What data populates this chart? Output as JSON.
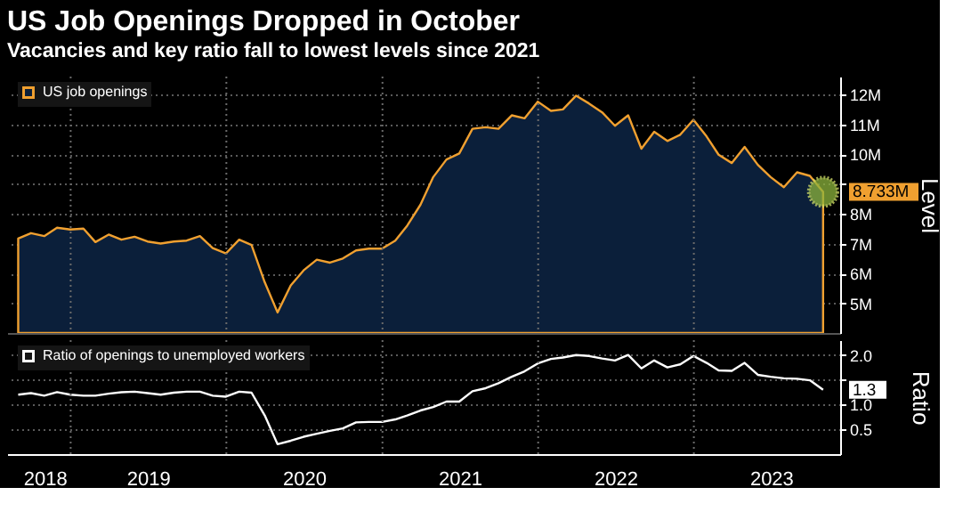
{
  "chart_data": [
    {
      "type": "area",
      "title": "US Job Openings Dropped in October",
      "subtitle": "Vacancies and key ratio fall to lowest levels since 2021",
      "ylabel": "Level",
      "x": [
        "2018-08-31",
        "2018-09-30",
        "2018-10-31",
        "2018-11-30",
        "2018-12-31",
        "2019-01-31",
        "2019-02-28",
        "2019-03-31",
        "2019-04-30",
        "2019-05-31",
        "2019-06-30",
        "2019-07-31",
        "2019-08-31",
        "2019-09-30",
        "2019-10-31",
        "2019-11-30",
        "2019-12-31",
        "2020-01-31",
        "2020-02-29",
        "2020-03-31",
        "2020-04-30",
        "2020-05-31",
        "2020-06-30",
        "2020-07-31",
        "2020-08-31",
        "2020-09-30",
        "2020-10-31",
        "2020-11-30",
        "2020-12-31",
        "2021-01-31",
        "2021-02-28",
        "2021-03-31",
        "2021-04-30",
        "2021-05-31",
        "2021-06-30",
        "2021-07-31",
        "2021-08-31",
        "2021-09-30",
        "2021-10-31",
        "2021-11-30",
        "2021-12-31",
        "2022-01-31",
        "2022-02-28",
        "2022-03-31",
        "2022-04-30",
        "2022-05-31",
        "2022-06-30",
        "2022-07-31",
        "2022-08-31",
        "2022-09-30",
        "2022-10-31",
        "2022-11-30",
        "2022-12-31",
        "2023-01-31",
        "2023-02-28",
        "2023-03-31",
        "2023-04-30",
        "2023-05-31",
        "2023-06-30",
        "2023-07-31",
        "2023-08-31",
        "2023-09-30",
        "2023-10-31"
      ],
      "series": [
        {
          "name": "US job openings",
          "color": "#f0a030",
          "values": [
            7.17,
            7.35,
            7.25,
            7.53,
            7.47,
            7.5,
            7.05,
            7.3,
            7.13,
            7.23,
            7.07,
            7.0,
            7.07,
            7.1,
            7.25,
            6.85,
            6.67,
            7.13,
            6.95,
            5.7,
            4.69,
            5.6,
            6.1,
            6.46,
            6.36,
            6.5,
            6.77,
            6.83,
            6.83,
            7.1,
            7.6,
            8.3,
            9.23,
            9.82,
            10.02,
            10.85,
            10.9,
            10.85,
            11.3,
            11.2,
            11.76,
            11.45,
            11.5,
            11.96,
            11.7,
            11.4,
            10.95,
            11.3,
            10.18,
            10.75,
            10.44,
            10.65,
            11.15,
            10.59,
            9.98,
            9.7,
            10.24,
            9.64,
            9.23,
            8.89,
            9.39,
            9.27,
            8.733
          ]
        }
      ],
      "xlim": [
        "2018-08-05",
        "2023-12-10"
      ],
      "xticks": [
        {
          "value": "2019-01-01",
          "label": null
        },
        {
          "value": "2020-01-01",
          "label": null
        },
        {
          "value": "2021-01-01",
          "label": null
        },
        {
          "value": "2022-01-01",
          "label": null
        },
        {
          "value": "2023-01-01",
          "label": null
        }
      ],
      "ylim": [
        4,
        12.6
      ],
      "yticks": [
        {
          "value": 5,
          "label": "5M"
        },
        {
          "value": 6,
          "label": "6M"
        },
        {
          "value": 7,
          "label": "7M"
        },
        {
          "value": 8,
          "label": "8M"
        },
        {
          "value": 9,
          "label": null
        },
        {
          "value": 10,
          "label": "10M"
        },
        {
          "value": 11,
          "label": "11M"
        },
        {
          "value": 12,
          "label": "12M"
        }
      ],
      "grid": true,
      "legend": "top left",
      "tick_labels": "y",
      "annotations": [
        {
          "text": "8.733M",
          "x": "2023-10-31",
          "y": 8.733
        }
      ]
    },
    {
      "type": "line",
      "ylabel": "Ratio",
      "x": [
        "2018-08-31",
        "2018-09-30",
        "2018-10-31",
        "2018-11-30",
        "2018-12-31",
        "2019-01-31",
        "2019-02-28",
        "2019-03-31",
        "2019-04-30",
        "2019-05-31",
        "2019-06-30",
        "2019-07-31",
        "2019-08-31",
        "2019-09-30",
        "2019-10-31",
        "2019-11-30",
        "2019-12-31",
        "2020-01-31",
        "2020-02-29",
        "2020-03-31",
        "2020-04-30",
        "2020-05-31",
        "2020-06-30",
        "2020-07-31",
        "2020-08-31",
        "2020-09-30",
        "2020-10-31",
        "2020-11-30",
        "2020-12-31",
        "2021-01-31",
        "2021-02-28",
        "2021-03-31",
        "2021-04-30",
        "2021-05-31",
        "2021-06-30",
        "2021-07-31",
        "2021-08-31",
        "2021-09-30",
        "2021-10-31",
        "2021-11-30",
        "2021-12-31",
        "2022-01-31",
        "2022-02-28",
        "2022-03-31",
        "2022-04-30",
        "2022-05-31",
        "2022-06-30",
        "2022-07-31",
        "2022-08-31",
        "2022-09-30",
        "2022-10-31",
        "2022-11-30",
        "2022-12-31",
        "2023-01-31",
        "2023-02-28",
        "2023-03-31",
        "2023-04-30",
        "2023-05-31",
        "2023-06-30",
        "2023-07-31",
        "2023-08-31",
        "2023-09-30",
        "2023-10-31"
      ],
      "series": [
        {
          "name": "Ratio of openings to unemployed workers",
          "color": "#ffffff",
          "values": [
            1.2,
            1.23,
            1.18,
            1.25,
            1.2,
            1.18,
            1.18,
            1.22,
            1.25,
            1.26,
            1.23,
            1.2,
            1.24,
            1.26,
            1.26,
            1.18,
            1.16,
            1.26,
            1.24,
            0.78,
            0.2,
            0.27,
            0.35,
            0.41,
            0.47,
            0.52,
            0.64,
            0.65,
            0.65,
            0.7,
            0.78,
            0.88,
            0.95,
            1.06,
            1.06,
            1.27,
            1.33,
            1.43,
            1.56,
            1.67,
            1.83,
            1.92,
            1.95,
            2.0,
            1.98,
            1.93,
            1.89,
            2.0,
            1.73,
            1.89,
            1.75,
            1.81,
            1.98,
            1.84,
            1.69,
            1.68,
            1.84,
            1.6,
            1.56,
            1.53,
            1.52,
            1.49,
            1.3
          ]
        }
      ],
      "xlim": [
        "2018-08-05",
        "2023-12-10"
      ],
      "xticks": [
        {
          "value": "2018-11-01",
          "label": "2018"
        },
        {
          "value": "2019-01-01",
          "label": null
        },
        {
          "value": "2019-07-01",
          "label": "2019"
        },
        {
          "value": "2020-01-01",
          "label": null
        },
        {
          "value": "2020-07-01",
          "label": "2020"
        },
        {
          "value": "2021-01-01",
          "label": null
        },
        {
          "value": "2021-07-01",
          "label": "2021"
        },
        {
          "value": "2022-01-01",
          "label": null
        },
        {
          "value": "2022-07-01",
          "label": "2022"
        },
        {
          "value": "2023-01-01",
          "label": null
        },
        {
          "value": "2023-07-01",
          "label": "2023"
        }
      ],
      "ylim": [
        0,
        2.3
      ],
      "yticks": [
        {
          "value": 0.5,
          "label": "0.5"
        },
        {
          "value": 1,
          "label": "1.0"
        },
        {
          "value": 1.5,
          "label": null
        },
        {
          "value": 2,
          "label": "2.0"
        }
      ],
      "grid": true,
      "legend": "top left",
      "annotations": [
        {
          "text": "1.3",
          "x": "2023-10-31",
          "y": 1.3
        }
      ]
    }
  ]
}
